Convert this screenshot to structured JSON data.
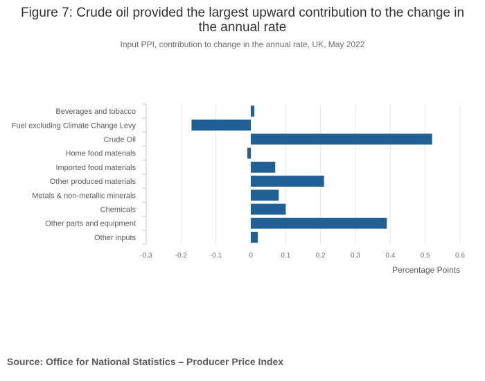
{
  "title": "Figure 7: Crude oil provided the largest upward contribution to the change in the annual rate",
  "subtitle": "Input PPI, contribution to change in the annual rate, UK, May 2022",
  "source": "Source: Office for National Statistics – Producer Price Index",
  "chart_data": {
    "type": "bar",
    "orientation": "horizontal",
    "categories": [
      "Beverages and tobacco",
      "Fuel excluding Climate Change Levy",
      "Crude Oil",
      "Home food materials",
      "Imported food materials",
      "Other produced materials",
      "Metals & non-metallic minerals",
      "Chemicals",
      "Other parts and equipment",
      "Other inputs"
    ],
    "values": [
      0.01,
      -0.17,
      0.52,
      -0.01,
      0.07,
      0.21,
      0.08,
      0.1,
      0.39,
      0.02
    ],
    "xlim": [
      -0.3,
      0.6
    ],
    "xticks": [
      -0.3,
      -0.2,
      -0.1,
      0,
      0.1,
      0.2,
      0.3,
      0.4,
      0.5,
      0.6
    ],
    "xtick_labels": [
      "-0.3",
      "-0.2",
      "-0.1",
      "0",
      "0.1",
      "0.2",
      "0.3",
      "0.4",
      "0.5",
      "0.6"
    ],
    "xlabel": "Percentage Points",
    "ylabel": "",
    "grid": true,
    "bar_color": "#206095",
    "grid_color": "#e6e6e6",
    "axis_color": "#c8c3e6"
  }
}
